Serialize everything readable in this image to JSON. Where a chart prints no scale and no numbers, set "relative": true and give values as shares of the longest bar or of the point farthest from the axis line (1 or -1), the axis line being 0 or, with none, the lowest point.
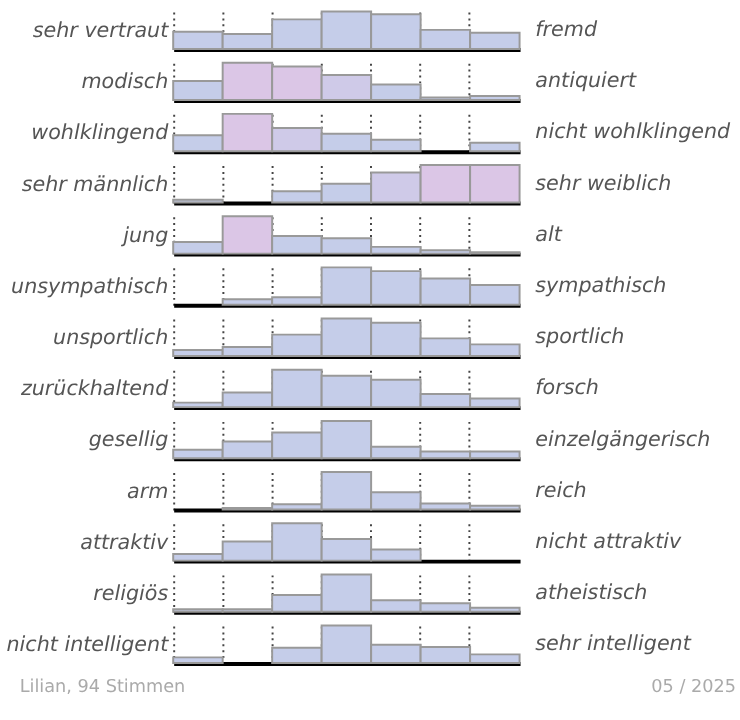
{
  "chart_data": [
    {
      "type": "bar",
      "relative": true,
      "grid": "x",
      "tick_labels": false,
      "categories": [
        null,
        null,
        null,
        null,
        null,
        null,
        null
      ],
      "ylabel": "sehr vertraut",
      "y2label": "fremd",
      "values": [
        0.46,
        0.4,
        0.79,
        1,
        0.93,
        0.51,
        0.43
      ],
      "colors": [
        "#c5cde9",
        "#c5cde9",
        "#c5cde9",
        "#c5cde9",
        "#c5cde9",
        "#c5cde9",
        "#c5cde9"
      ]
    },
    {
      "type": "bar",
      "relative": true,
      "grid": "x",
      "tick_labels": false,
      "categories": [
        null,
        null,
        null,
        null,
        null,
        null,
        null
      ],
      "ylabel": "modisch",
      "y2label": "antiquiert",
      "values": [
        0.51,
        1,
        0.9,
        0.67,
        0.42,
        0.07,
        0.11
      ],
      "colors": [
        "#c5cde9",
        "#dbc6e6",
        "#dbc6e6",
        "#cfcae8",
        "#c5cde9",
        "#c5cde9",
        "#c5cde9"
      ]
    },
    {
      "type": "bar",
      "relative": true,
      "grid": "x",
      "tick_labels": false,
      "categories": [
        null,
        null,
        null,
        null,
        null,
        null,
        null
      ],
      "ylabel": "wohlklingend",
      "y2label": "nicht wohlklingend",
      "values": [
        0.43,
        1,
        0.62,
        0.47,
        0.31,
        0,
        0.23
      ],
      "colors": [
        "#c5cde9",
        "#dbc6e6",
        "#cfcae8",
        "#c5cde9",
        "#c5cde9",
        "#c5cde9",
        "#c5cde9"
      ]
    },
    {
      "type": "bar",
      "relative": true,
      "grid": "x",
      "tick_labels": false,
      "categories": [
        null,
        null,
        null,
        null,
        null,
        null,
        null
      ],
      "ylabel": "sehr männlich",
      "y2label": "sehr weiblich",
      "values": [
        0.07,
        0,
        0.3,
        0.5,
        0.8,
        1,
        1
      ],
      "colors": [
        "#c5cde9",
        "#c5cde9",
        "#c5cde9",
        "#c5cde9",
        "#cfcae8",
        "#dbc6e6",
        "#dbc6e6"
      ]
    },
    {
      "type": "bar",
      "relative": true,
      "grid": "x",
      "tick_labels": false,
      "categories": [
        null,
        null,
        null,
        null,
        null,
        null,
        null
      ],
      "ylabel": "jung",
      "y2label": "alt",
      "values": [
        0.31,
        1,
        0.47,
        0.41,
        0.18,
        0.09,
        0.04
      ],
      "colors": [
        "#c5cde9",
        "#dbc6e6",
        "#c5cde9",
        "#c5cde9",
        "#c5cde9",
        "#c5cde9",
        "#c5cde9"
      ]
    },
    {
      "type": "bar",
      "relative": true,
      "grid": "x",
      "tick_labels": false,
      "categories": [
        null,
        null,
        null,
        null,
        null,
        null,
        null
      ],
      "ylabel": "unsympathisch",
      "y2label": "sympathisch",
      "values": [
        0,
        0.15,
        0.2,
        1,
        0.9,
        0.7,
        0.53
      ],
      "colors": [
        "#c5cde9",
        "#c5cde9",
        "#c5cde9",
        "#c5cde9",
        "#c5cde9",
        "#c5cde9",
        "#c5cde9"
      ]
    },
    {
      "type": "bar",
      "relative": true,
      "grid": "x",
      "tick_labels": false,
      "categories": [
        null,
        null,
        null,
        null,
        null,
        null,
        null
      ],
      "ylabel": "unsportlich",
      "y2label": "sportlich",
      "values": [
        0.16,
        0.24,
        0.57,
        1,
        0.89,
        0.47,
        0.31
      ],
      "colors": [
        "#c5cde9",
        "#c5cde9",
        "#c5cde9",
        "#c5cde9",
        "#c5cde9",
        "#c5cde9",
        "#c5cde9"
      ]
    },
    {
      "type": "bar",
      "relative": true,
      "grid": "x",
      "tick_labels": false,
      "categories": [
        null,
        null,
        null,
        null,
        null,
        null,
        null
      ],
      "ylabel": "zurückhaltend",
      "y2label": "forsch",
      "values": [
        0.12,
        0.39,
        1,
        0.84,
        0.73,
        0.35,
        0.23
      ],
      "colors": [
        "#c5cde9",
        "#c5cde9",
        "#c5cde9",
        "#c5cde9",
        "#c5cde9",
        "#c5cde9",
        "#c5cde9"
      ]
    },
    {
      "type": "bar",
      "relative": true,
      "grid": "x",
      "tick_labels": false,
      "categories": [
        null,
        null,
        null,
        null,
        null,
        null,
        null
      ],
      "ylabel": "gesellig",
      "y2label": "einzelgängerisch",
      "values": [
        0.23,
        0.45,
        0.69,
        1,
        0.31,
        0.18,
        0.18
      ],
      "colors": [
        "#c5cde9",
        "#c5cde9",
        "#c5cde9",
        "#c5cde9",
        "#c5cde9",
        "#c5cde9",
        "#c5cde9"
      ]
    },
    {
      "type": "bar",
      "relative": true,
      "grid": "x",
      "tick_labels": false,
      "categories": [
        null,
        null,
        null,
        null,
        null,
        null,
        null
      ],
      "ylabel": "arm",
      "y2label": "reich",
      "values": [
        0,
        0.04,
        0.14,
        1,
        0.46,
        0.16,
        0.1
      ],
      "colors": [
        "#c5cde9",
        "#c5cde9",
        "#c5cde9",
        "#c5cde9",
        "#c5cde9",
        "#c5cde9",
        "#c5cde9"
      ]
    },
    {
      "type": "bar",
      "relative": true,
      "grid": "x",
      "tick_labels": false,
      "categories": [
        null,
        null,
        null,
        null,
        null,
        null,
        null
      ],
      "ylabel": "attraktiv",
      "y2label": "nicht attraktiv",
      "values": [
        0.18,
        0.51,
        1,
        0.58,
        0.3,
        0,
        0
      ],
      "colors": [
        "#c5cde9",
        "#c5cde9",
        "#c5cde9",
        "#c5cde9",
        "#c5cde9",
        "#c5cde9",
        "#c5cde9"
      ]
    },
    {
      "type": "bar",
      "relative": true,
      "grid": "x",
      "tick_labels": false,
      "categories": [
        null,
        null,
        null,
        null,
        null,
        null,
        null
      ],
      "ylabel": "religiös",
      "y2label": "atheistisch",
      "values": [
        0.07,
        0.07,
        0.45,
        1,
        0.31,
        0.23,
        0.11
      ],
      "colors": [
        "#c5cde9",
        "#c5cde9",
        "#c5cde9",
        "#c5cde9",
        "#c5cde9",
        "#c5cde9",
        "#c5cde9"
      ]
    },
    {
      "type": "bar",
      "relative": true,
      "grid": "x",
      "tick_labels": false,
      "categories": [
        null,
        null,
        null,
        null,
        null,
        null,
        null
      ],
      "ylabel": "nicht intelligent",
      "y2label": "sehr intelligent",
      "values": [
        0.15,
        0,
        0.41,
        1,
        0.49,
        0.43,
        0.23
      ],
      "colors": [
        "#c5cde9",
        "#c5cde9",
        "#c5cde9",
        "#c5cde9",
        "#c5cde9",
        "#c5cde9",
        "#c5cde9"
      ],
      "annotations": [
        "Lilian, 94 Stimmen",
        "05 / 2025"
      ]
    }
  ]
}
